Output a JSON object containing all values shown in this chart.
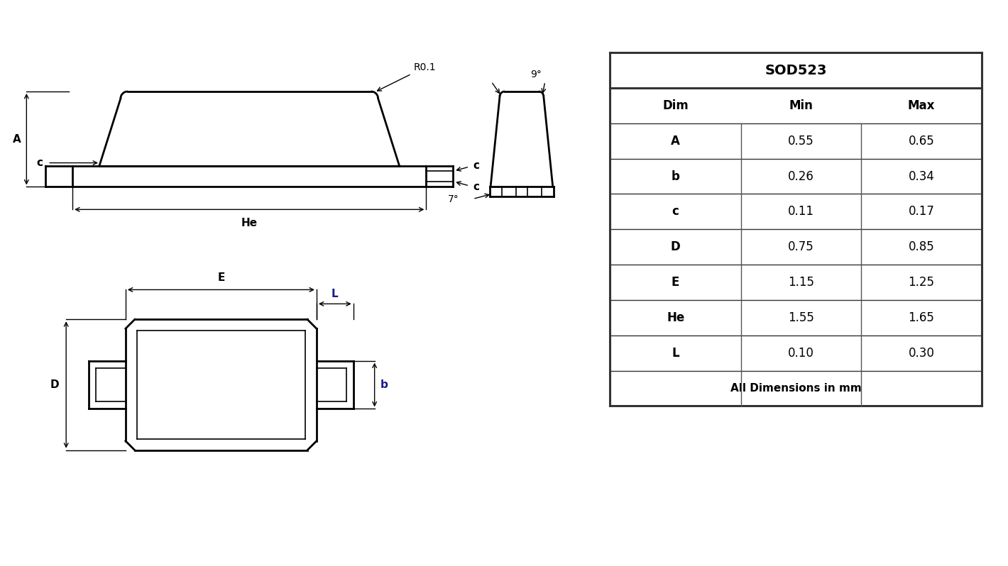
{
  "title": "SOD523",
  "table_header": [
    "Dim",
    "Min",
    "Max"
  ],
  "table_rows": [
    [
      "A",
      "0.55",
      "0.65"
    ],
    [
      "b",
      "0.26",
      "0.34"
    ],
    [
      "c",
      "0.11",
      "0.17"
    ],
    [
      "D",
      "0.75",
      "0.85"
    ],
    [
      "E",
      "1.15",
      "1.25"
    ],
    [
      "He",
      "1.55",
      "1.65"
    ],
    [
      "L",
      "0.10",
      "0.30"
    ]
  ],
  "footer": "All Dimensions in mm",
  "bg_color": "#ffffff",
  "line_color": "#000000",
  "dim_line_color": "#1a1a8c",
  "text_color": "#000000",
  "table_border_color": "#555555"
}
